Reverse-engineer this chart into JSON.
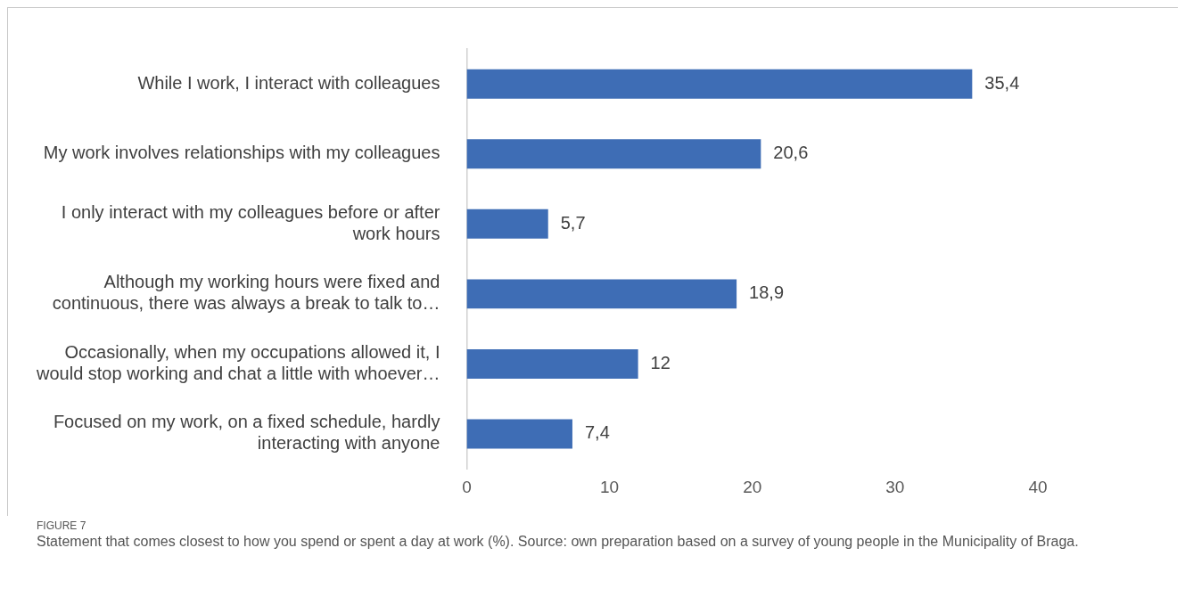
{
  "chart_data": {
    "type": "bar",
    "orientation": "horizontal",
    "categories": [
      "While I work, I interact with colleagues",
      "My work involves relationships with my colleagues",
      "I only interact with my colleagues before or after work hours",
      "Although my working hours were fixed and continuous, there was always a break to talk to…",
      "Occasionally, when my occupations allowed it, I would stop working and chat a little with whoever…",
      "Focused on my work, on a fixed schedule, hardly interacting with anyone"
    ],
    "values": [
      35.4,
      20.6,
      5.7,
      18.9,
      12,
      7.4
    ],
    "value_labels": [
      "35,4",
      "20,6",
      "5,7",
      "18,9",
      "12",
      "7,4"
    ],
    "color": "#3e6db5",
    "xlim": [
      0,
      40
    ],
    "xticks": [
      0,
      10,
      20,
      30,
      40
    ],
    "grid": false,
    "legend": false,
    "annotations": [
      "FIGURE 7",
      "Statement that comes closest to how you spend or spent a day at work (%). Source: own preparation based on a survey of young people in the Municipality of Braga."
    ]
  }
}
